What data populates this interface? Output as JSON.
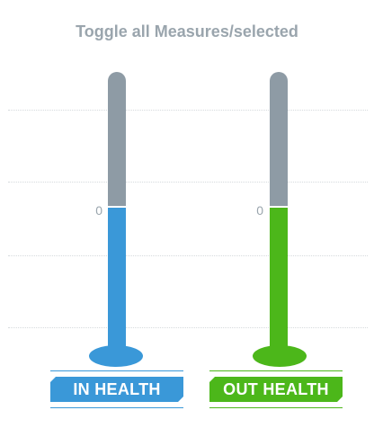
{
  "header": {
    "toggle_label": "Toggle all Measures/selected"
  },
  "thermometers": [
    {
      "label": "IN HEALTH",
      "value_text": "0",
      "fill_fraction": 0.52,
      "color": "#3a98d8",
      "empty_color": "#8e9ba5"
    },
    {
      "label": "OUT HEALTH",
      "value_text": "0",
      "fill_fraction": 0.52,
      "color": "#4cb71a",
      "empty_color": "#8e9ba5"
    }
  ],
  "gridlines": {
    "count": 4,
    "style": "dotted",
    "color": "#d6dadd"
  }
}
